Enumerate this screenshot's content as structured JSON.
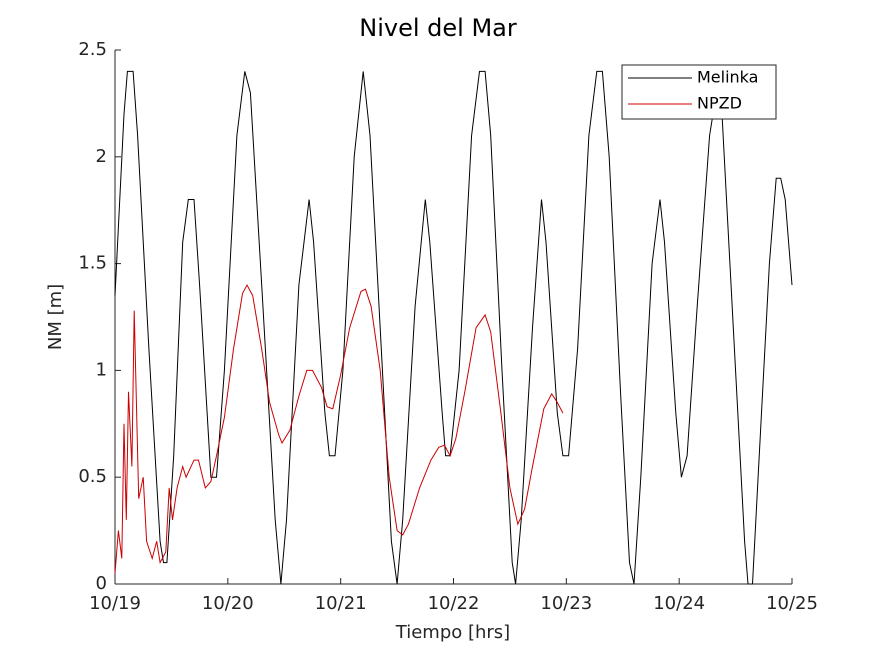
{
  "chart_data": {
    "type": "line",
    "title": "Nivel del Mar",
    "xlabel": "Tiempo [hrs]",
    "ylabel": "NM [m]",
    "xlim": [
      19,
      25
    ],
    "ylim": [
      0,
      2.5
    ],
    "xticks": [
      {
        "value": 19,
        "label": "10/19"
      },
      {
        "value": 20,
        "label": "10/20"
      },
      {
        "value": 21,
        "label": "10/21"
      },
      {
        "value": 22,
        "label": "10/22"
      },
      {
        "value": 23,
        "label": "10/23"
      },
      {
        "value": 24,
        "label": "10/24"
      },
      {
        "value": 25,
        "label": "10/25"
      }
    ],
    "yticks": [
      0,
      0.5,
      1,
      1.5,
      2,
      2.5
    ],
    "legend": "top-right",
    "series": [
      {
        "name": "Melinka",
        "color": "#000000",
        "x": [
          19.0,
          19.08,
          19.11,
          19.16,
          19.2,
          19.3,
          19.4,
          19.43,
          19.46,
          19.52,
          19.6,
          19.65,
          19.7,
          19.75,
          19.85,
          19.9,
          19.97,
          20.08,
          20.15,
          20.2,
          20.3,
          20.42,
          20.47,
          20.52,
          20.63,
          20.72,
          20.76,
          20.86,
          20.9,
          20.95,
          21.02,
          21.12,
          21.2,
          21.26,
          21.36,
          21.45,
          21.5,
          21.55,
          21.66,
          21.75,
          21.79,
          21.9,
          21.93,
          21.97,
          22.05,
          22.16,
          22.23,
          22.28,
          22.33,
          22.43,
          22.52,
          22.55,
          22.6,
          22.7,
          22.78,
          22.82,
          22.92,
          22.97,
          23.02,
          23.1,
          23.2,
          23.27,
          23.32,
          23.38,
          23.48,
          23.56,
          23.6,
          23.66,
          23.76,
          23.83,
          23.87,
          23.97,
          24.02,
          24.07,
          24.16,
          24.27,
          24.33,
          24.38,
          24.48,
          24.58,
          24.61,
          24.65,
          24.7,
          24.8,
          24.86,
          24.9,
          24.94,
          25.0
        ],
        "values": [
          1.35,
          2.2,
          2.4,
          2.4,
          2.1,
          1.1,
          0.2,
          0.1,
          0.1,
          0.6,
          1.6,
          1.8,
          1.8,
          1.4,
          0.5,
          0.5,
          1.0,
          2.1,
          2.4,
          2.3,
          1.4,
          0.3,
          0.0,
          0.3,
          1.4,
          1.8,
          1.6,
          0.8,
          0.6,
          0.6,
          1.0,
          2.0,
          2.4,
          2.1,
          1.1,
          0.2,
          0.0,
          0.3,
          1.3,
          1.8,
          1.6,
          0.8,
          0.6,
          0.6,
          1.0,
          2.1,
          2.4,
          2.4,
          2.1,
          1.0,
          0.1,
          0.0,
          0.3,
          1.2,
          1.8,
          1.6,
          0.8,
          0.6,
          0.6,
          1.1,
          2.1,
          2.4,
          2.4,
          2.0,
          0.9,
          0.1,
          0.0,
          0.5,
          1.5,
          1.8,
          1.6,
          0.8,
          0.5,
          0.6,
          1.3,
          2.1,
          2.3,
          2.2,
          1.2,
          0.2,
          0.0,
          0.0,
          0.5,
          1.5,
          1.9,
          1.9,
          1.8,
          1.4
        ]
      },
      {
        "name": "NPZD",
        "color": "#cc0000",
        "x": [
          19.0,
          19.03,
          19.06,
          19.08,
          19.1,
          19.12,
          19.15,
          19.17,
          19.19,
          19.21,
          19.25,
          19.28,
          19.33,
          19.37,
          19.4,
          19.45,
          19.48,
          19.51,
          19.55,
          19.6,
          19.63,
          19.7,
          19.74,
          19.8,
          19.85,
          19.9,
          19.97,
          20.05,
          20.13,
          20.17,
          20.22,
          20.3,
          20.37,
          20.45,
          20.48,
          20.55,
          20.63,
          20.7,
          20.75,
          20.83,
          20.88,
          20.93,
          21.0,
          21.08,
          21.18,
          21.22,
          21.27,
          21.35,
          21.43,
          21.5,
          21.55,
          21.6,
          21.7,
          21.8,
          21.87,
          21.92,
          21.97,
          22.02,
          22.1,
          22.2,
          22.28,
          22.33,
          22.42,
          22.5,
          22.57,
          22.63,
          22.7,
          22.8,
          22.87,
          22.92,
          22.97
        ],
        "values": [
          0.05,
          0.25,
          0.12,
          0.75,
          0.3,
          0.9,
          0.55,
          1.28,
          0.85,
          0.4,
          0.5,
          0.2,
          0.12,
          0.2,
          0.1,
          0.15,
          0.45,
          0.3,
          0.45,
          0.55,
          0.5,
          0.58,
          0.58,
          0.45,
          0.48,
          0.6,
          0.78,
          1.1,
          1.36,
          1.4,
          1.35,
          1.1,
          0.85,
          0.7,
          0.66,
          0.72,
          0.88,
          1.0,
          1.0,
          0.92,
          0.83,
          0.82,
          0.98,
          1.2,
          1.37,
          1.38,
          1.3,
          1.0,
          0.5,
          0.25,
          0.23,
          0.28,
          0.45,
          0.58,
          0.64,
          0.65,
          0.6,
          0.68,
          0.9,
          1.2,
          1.26,
          1.18,
          0.8,
          0.45,
          0.28,
          0.35,
          0.55,
          0.82,
          0.89,
          0.85,
          0.8
        ]
      }
    ]
  }
}
